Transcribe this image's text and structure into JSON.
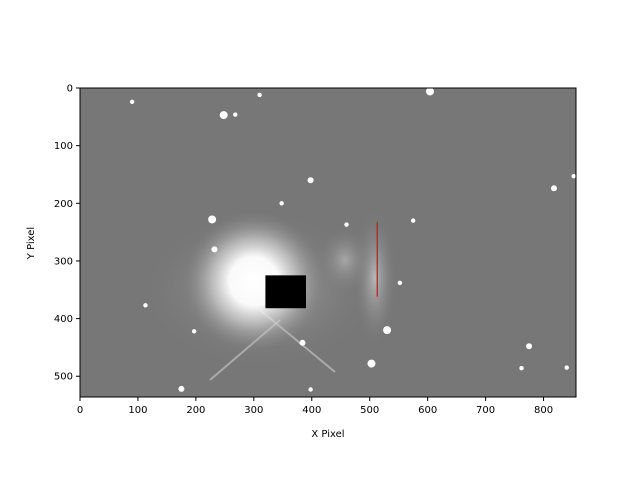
{
  "chart_data": {
    "type": "image",
    "title": "",
    "xlabel": "X Pixel",
    "ylabel": "Y Pixel",
    "xlim": [
      0,
      856
    ],
    "ylim": [
      536,
      0
    ],
    "x_ticks": [
      0,
      100,
      200,
      300,
      400,
      500,
      600,
      700,
      800
    ],
    "y_ticks": [
      0,
      100,
      200,
      300,
      400,
      500
    ],
    "colormap": "gray",
    "background_color": "#777777",
    "occulting_mask": {
      "x0": 320,
      "x1": 390,
      "y0": 325,
      "y1": 382,
      "color": "#000000"
    },
    "slit_line": {
      "x": 513,
      "y0": 232,
      "y1": 362,
      "color": "#ff0000"
    },
    "bright_source": {
      "x": 300,
      "y": 335
    },
    "stars": [
      {
        "x": 248,
        "y": 47
      },
      {
        "x": 268,
        "y": 46
      },
      {
        "x": 310,
        "y": 12
      },
      {
        "x": 398,
        "y": 160
      },
      {
        "x": 348,
        "y": 200
      },
      {
        "x": 228,
        "y": 228
      },
      {
        "x": 232,
        "y": 280
      },
      {
        "x": 113,
        "y": 377
      },
      {
        "x": 197,
        "y": 422
      },
      {
        "x": 384,
        "y": 442
      },
      {
        "x": 503,
        "y": 478
      },
      {
        "x": 552,
        "y": 338
      },
      {
        "x": 775,
        "y": 448
      },
      {
        "x": 852,
        "y": 153
      },
      {
        "x": 398,
        "y": 523
      },
      {
        "x": 604,
        "y": 6
      },
      {
        "x": 575,
        "y": 230
      },
      {
        "x": 90,
        "y": 24
      },
      {
        "x": 175,
        "y": 522
      },
      {
        "x": 460,
        "y": 237
      },
      {
        "x": 530,
        "y": 420
      },
      {
        "x": 818,
        "y": 174
      },
      {
        "x": 762,
        "y": 486
      },
      {
        "x": 840,
        "y": 485
      }
    ]
  }
}
